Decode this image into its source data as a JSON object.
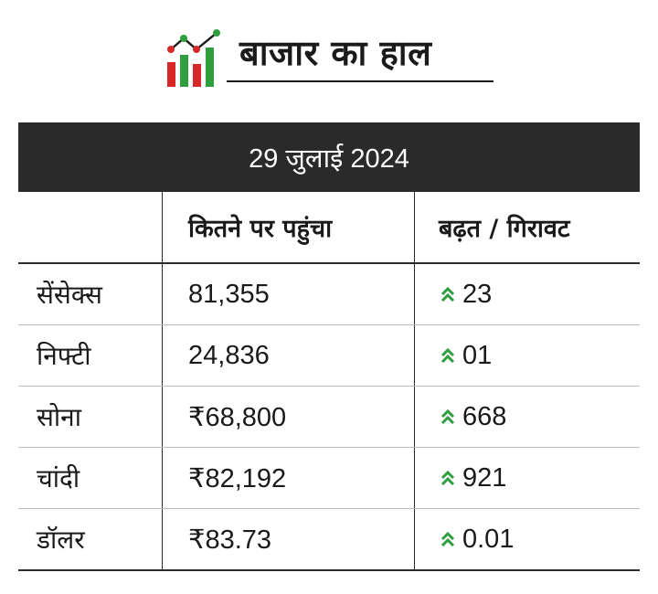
{
  "header": {
    "title": "बाजार का हाल"
  },
  "colors": {
    "logo_red": "#d62828",
    "logo_green": "#2e9e3e",
    "up_arrow": "#2e9e3e",
    "date_bar_bg": "#2a2a2a"
  },
  "table": {
    "date": "29 जुलाई 2024",
    "columns": [
      "",
      "कितने पर पहुंचा",
      "बढ़त / गिरावट"
    ],
    "rows": [
      {
        "name": "सेंसेक्स",
        "value": "81,355",
        "change_icon": "double-chevron-up-icon",
        "change": "23"
      },
      {
        "name": "निफ्टी",
        "value": "24,836",
        "change_icon": "double-chevron-up-icon",
        "change": "01"
      },
      {
        "name": "सोना",
        "value": "₹68,800",
        "change_icon": "double-chevron-up-icon",
        "change": "668"
      },
      {
        "name": "चांदी",
        "value": "₹82,192",
        "change_icon": "double-chevron-up-icon",
        "change": "921"
      },
      {
        "name": "डॉलर",
        "value": "₹83.73",
        "change_icon": "double-chevron-up-icon",
        "change": "0.01"
      }
    ]
  }
}
